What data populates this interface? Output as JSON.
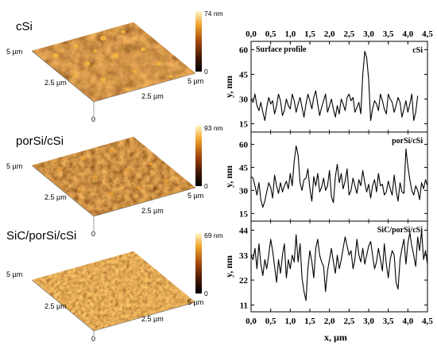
{
  "figure": {
    "colors": {
      "afm_dark": "#4a1a05",
      "afm_mid": "#a4480f",
      "afm_light": "#f5c040",
      "colorbar_top": "#fff7c6",
      "colorbar_bottom": "#000000",
      "profile_line": "#000000"
    }
  },
  "afm_images": [
    {
      "label": "cSi",
      "zmax_label": "74 nm",
      "zmin_label": "0",
      "side_left_label": "5 µm",
      "mid_left_label": "2.5 µm",
      "mid_right_label": "2.5 µm",
      "corner_right_label": "5 µm",
      "origin_label": "0",
      "texture": "grains-large"
    },
    {
      "label": "porSi/cSi",
      "zmax_label": "93 nm",
      "zmin_label": "0",
      "side_left_label": "5 µm",
      "mid_left_label": "2.5 µm",
      "mid_right_label": "2.5 µm",
      "corner_right_label": "5 µm",
      "origin_label": "0",
      "texture": "grains-medium"
    },
    {
      "label": "SiC/porSi/cSi",
      "zmax_label": "69 nm",
      "zmin_label": "0",
      "side_left_label": "5 µm",
      "mid_left_label": "2.5 µm",
      "mid_right_label": "2.5 µm",
      "corner_right_label": "5 µm",
      "origin_label": "0",
      "texture": "grains-fine"
    }
  ],
  "chart_data": {
    "type": "line",
    "title": "Surface profile",
    "xlabel": "x, µm",
    "xlim": [
      0,
      4.5
    ],
    "x_ticks": [
      "0,0",
      "0,5",
      "1,0",
      "1,5",
      "2,0",
      "2,5",
      "3,0",
      "3,5",
      "4,0",
      "4,5"
    ],
    "x_tick_values": [
      0,
      0.5,
      1,
      1.5,
      2,
      2.5,
      3,
      3.5,
      4,
      4.5
    ],
    "grid": false,
    "panels": [
      {
        "name": "cSi",
        "ylabel": "y, nm",
        "ylim": [
          10,
          65
        ],
        "y_ticks": [
          15,
          30,
          45,
          60
        ],
        "x": [
          0.0,
          0.05,
          0.1,
          0.15,
          0.2,
          0.25,
          0.3,
          0.35,
          0.4,
          0.45,
          0.5,
          0.55,
          0.6,
          0.65,
          0.7,
          0.75,
          0.8,
          0.85,
          0.9,
          0.95,
          1.0,
          1.05,
          1.1,
          1.15,
          1.2,
          1.25,
          1.3,
          1.35,
          1.4,
          1.45,
          1.5,
          1.55,
          1.6,
          1.65,
          1.7,
          1.75,
          1.8,
          1.85,
          1.9,
          1.95,
          2.0,
          2.05,
          2.1,
          2.15,
          2.2,
          2.25,
          2.3,
          2.35,
          2.4,
          2.45,
          2.5,
          2.55,
          2.6,
          2.65,
          2.7,
          2.75,
          2.8,
          2.85,
          2.9,
          2.95,
          3.0,
          3.05,
          3.1,
          3.15,
          3.2,
          3.25,
          3.3,
          3.35,
          3.4,
          3.45,
          3.5,
          3.55,
          3.6,
          3.65,
          3.7,
          3.75,
          3.8,
          3.85,
          3.9,
          3.95,
          4.0,
          4.05,
          4.1,
          4.15,
          4.2,
          4.25
        ],
        "y": [
          30,
          28,
          33,
          26,
          23,
          28,
          22,
          17,
          25,
          31,
          27,
          29,
          21,
          26,
          33,
          29,
          20,
          23,
          30,
          26,
          24,
          33,
          29,
          22,
          27,
          31,
          25,
          19,
          27,
          33,
          29,
          24,
          31,
          35,
          27,
          20,
          25,
          29,
          33,
          22,
          26,
          30,
          24,
          19,
          26,
          21,
          30,
          27,
          23,
          31,
          33,
          29,
          31,
          22,
          25,
          28,
          21,
          45,
          59,
          55,
          42,
          17,
          24,
          29,
          27,
          23,
          33,
          29,
          24,
          21,
          33,
          30,
          28,
          22,
          26,
          31,
          28,
          19,
          24,
          29,
          22,
          27,
          33,
          17,
          22,
          32
        ]
      },
      {
        "name": "porSi/cSi",
        "ylabel": "y, nm",
        "ylim": [
          10,
          68
        ],
        "y_ticks": [
          15,
          30,
          45,
          60
        ],
        "x": [
          0.0,
          0.05,
          0.1,
          0.15,
          0.2,
          0.25,
          0.3,
          0.35,
          0.4,
          0.45,
          0.5,
          0.55,
          0.6,
          0.65,
          0.7,
          0.75,
          0.8,
          0.85,
          0.9,
          0.95,
          1.0,
          1.05,
          1.1,
          1.15,
          1.2,
          1.25,
          1.3,
          1.35,
          1.4,
          1.45,
          1.5,
          1.55,
          1.6,
          1.65,
          1.7,
          1.75,
          1.8,
          1.85,
          1.9,
          1.95,
          2.0,
          2.05,
          2.1,
          2.15,
          2.2,
          2.25,
          2.3,
          2.35,
          2.4,
          2.45,
          2.5,
          2.55,
          2.6,
          2.65,
          2.7,
          2.75,
          2.8,
          2.85,
          2.9,
          2.95,
          3.0,
          3.05,
          3.1,
          3.15,
          3.2,
          3.25,
          3.3,
          3.35,
          3.4,
          3.45,
          3.5,
          3.55,
          3.6,
          3.65,
          3.7,
          3.75,
          3.8,
          3.85,
          3.9,
          3.95,
          4.0,
          4.05,
          4.1,
          4.15,
          4.2,
          4.25,
          4.3,
          4.35,
          4.4,
          4.45,
          4.5
        ],
        "y": [
          39,
          38,
          33,
          27,
          35,
          24,
          19,
          23,
          29,
          35,
          32,
          25,
          40,
          33,
          28,
          35,
          29,
          33,
          36,
          31,
          41,
          33,
          49,
          59,
          53,
          35,
          30,
          37,
          38,
          44,
          31,
          23,
          39,
          33,
          41,
          29,
          32,
          38,
          30,
          33,
          43,
          26,
          22,
          39,
          47,
          35,
          41,
          31,
          36,
          44,
          27,
          30,
          38,
          33,
          28,
          37,
          33,
          43,
          35,
          29,
          34,
          25,
          33,
          37,
          29,
          41,
          33,
          34,
          27,
          29,
          36,
          31,
          27,
          40,
          30,
          23,
          35,
          29,
          28,
          57,
          46,
          37,
          30,
          27,
          33,
          30,
          24,
          35,
          31,
          37,
          33
        ]
      },
      {
        "name": "SiC/porSi/cSi",
        "ylabel": "y, nm",
        "ylim": [
          8,
          48
        ],
        "y_ticks": [
          11,
          22,
          33,
          44
        ],
        "x": [
          0.0,
          0.05,
          0.1,
          0.15,
          0.2,
          0.25,
          0.3,
          0.35,
          0.4,
          0.45,
          0.5,
          0.55,
          0.6,
          0.65,
          0.7,
          0.75,
          0.8,
          0.85,
          0.9,
          0.95,
          1.0,
          1.05,
          1.1,
          1.15,
          1.2,
          1.25,
          1.3,
          1.35,
          1.4,
          1.45,
          1.5,
          1.55,
          1.6,
          1.65,
          1.7,
          1.75,
          1.8,
          1.85,
          1.9,
          1.95,
          2.0,
          2.05,
          2.1,
          2.15,
          2.2,
          2.25,
          2.3,
          2.35,
          2.4,
          2.45,
          2.5,
          2.55,
          2.6,
          2.65,
          2.7,
          2.75,
          2.8,
          2.85,
          2.9,
          2.95,
          3.0,
          3.05,
          3.1,
          3.15,
          3.2,
          3.25,
          3.3,
          3.35,
          3.4,
          3.45,
          3.5,
          3.55,
          3.6,
          3.65,
          3.7,
          3.75,
          3.8,
          3.85,
          3.9,
          3.95,
          4.0,
          4.05,
          4.1,
          4.15,
          4.2,
          4.25,
          4.3,
          4.35,
          4.4,
          4.45,
          4.5
        ],
        "y": [
          33,
          31,
          36,
          27,
          38,
          29,
          24,
          31,
          27,
          33,
          40,
          35,
          28,
          21,
          31,
          25,
          33,
          38,
          23,
          31,
          27,
          33,
          30,
          42,
          30,
          38,
          23,
          17,
          13,
          27,
          35,
          30,
          23,
          36,
          40,
          33,
          30,
          28,
          17,
          26,
          31,
          36,
          30,
          25,
          33,
          27,
          31,
          36,
          41,
          37,
          33,
          35,
          27,
          31,
          40,
          33,
          30,
          36,
          29,
          33,
          37,
          39,
          33,
          27,
          30,
          36,
          31,
          26,
          38,
          29,
          23,
          31,
          35,
          33,
          21,
          18,
          31,
          36,
          40,
          29,
          38,
          43,
          37,
          33,
          28,
          41,
          35,
          44,
          31,
          35,
          29
        ]
      }
    ]
  }
}
